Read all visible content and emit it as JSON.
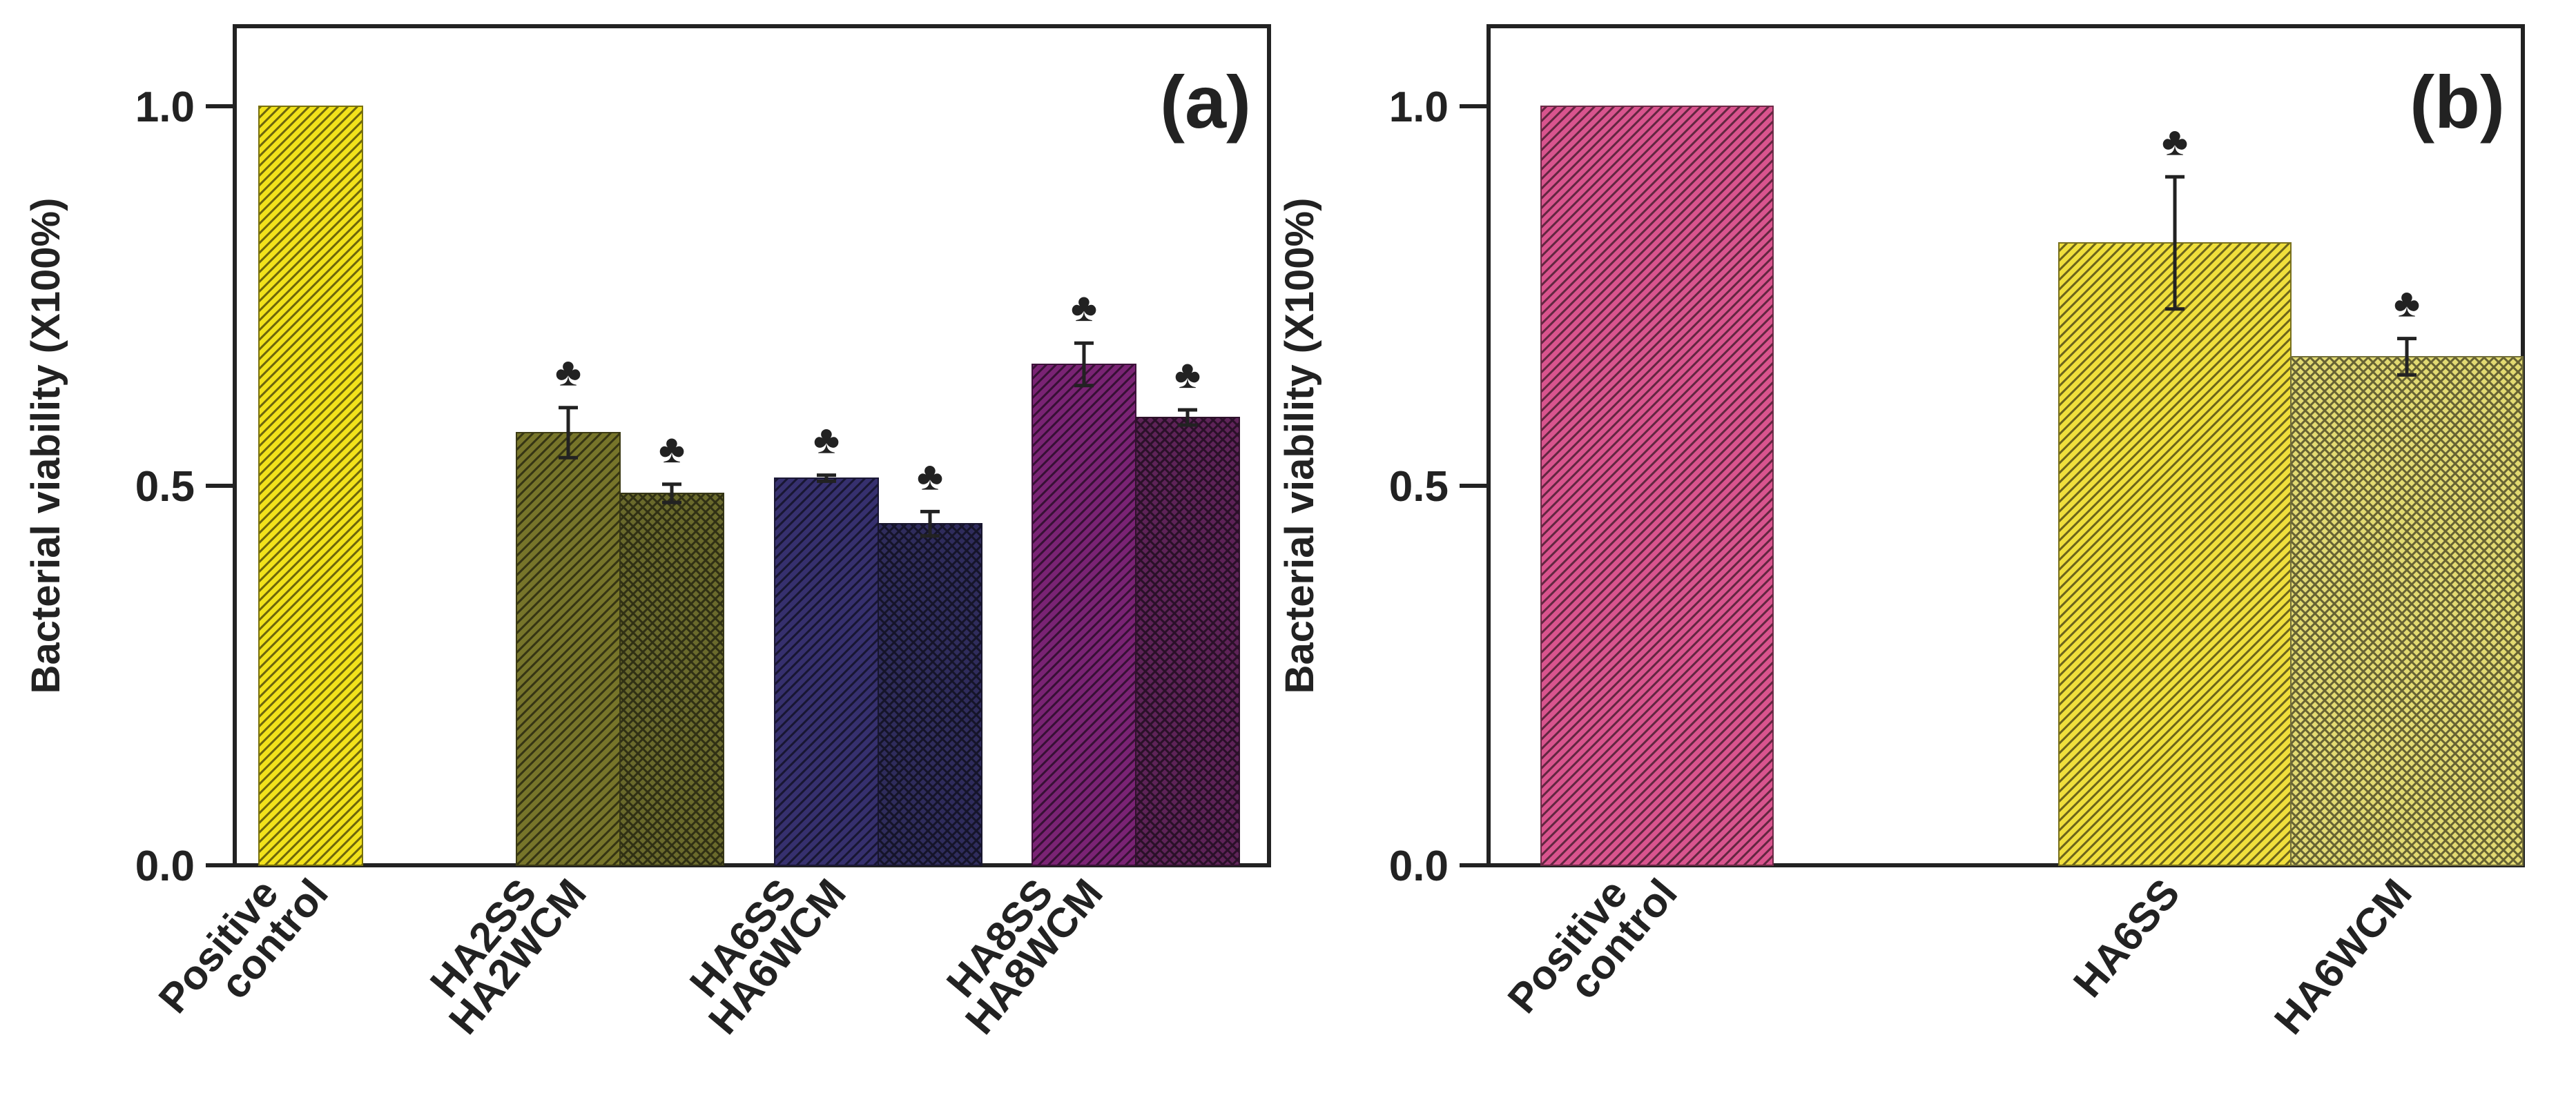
{
  "chart_data": [
    {
      "type": "bar",
      "panel_label": "(a)",
      "ylabel": "Bacterial viability (X100%)",
      "ylim": [
        0,
        1.1
      ],
      "yticks": [
        0.0,
        0.5,
        1.0
      ],
      "ytick_labels": [
        "0.0",
        "0.5",
        "1.0"
      ],
      "categories": [
        {
          "label": "Positive control",
          "label_lines": [
            "Positive",
            "control"
          ]
        },
        {
          "label": "HA2SS HA2WCM",
          "label_lines": [
            "HA2SS",
            "HA2WCM"
          ]
        },
        {
          "label": "HA6SS HA6WCM",
          "label_lines": [
            "HA6SS",
            "HA6WCM"
          ]
        },
        {
          "label": "HA8SS HA8WCM",
          "label_lines": [
            "HA8SS",
            "HA8WCM"
          ]
        }
      ],
      "bars": [
        {
          "name": "Positive control",
          "group": 0,
          "value": 1.0,
          "error": null,
          "significant": false,
          "color": "#f2e21b",
          "pattern": "diag"
        },
        {
          "name": "HA2SS",
          "group": 1,
          "value": 0.57,
          "error": 0.033,
          "significant": true,
          "color": "#77752a",
          "pattern": "diag"
        },
        {
          "name": "HA2WCM",
          "group": 1,
          "value": 0.49,
          "error": 0.012,
          "significant": true,
          "color": "#6a6a2c",
          "pattern": "cross"
        },
        {
          "name": "HA6SS",
          "group": 2,
          "value": 0.51,
          "error": 0.004,
          "significant": true,
          "color": "#36306e",
          "pattern": "diag"
        },
        {
          "name": "HA6WCM",
          "group": 2,
          "value": 0.45,
          "error": 0.016,
          "significant": true,
          "color": "#2f2c5c",
          "pattern": "cross"
        },
        {
          "name": "HA8SS",
          "group": 3,
          "value": 0.66,
          "error": 0.028,
          "significant": true,
          "color": "#7a2374",
          "pattern": "diag"
        },
        {
          "name": "HA8WCM",
          "group": 3,
          "value": 0.59,
          "error": 0.01,
          "significant": true,
          "color": "#5e2358",
          "pattern": "cross"
        }
      ],
      "significance_marker": "♣"
    },
    {
      "type": "bar",
      "panel_label": "(b)",
      "ylabel": "Bacterial viability (X100%)",
      "ylim": [
        0,
        1.1
      ],
      "yticks": [
        0.0,
        0.5,
        1.0
      ],
      "ytick_labels": [
        "0.0",
        "0.5",
        "1.0"
      ],
      "categories": [
        {
          "label": "Positive control",
          "label_lines": [
            "Positive",
            "control"
          ]
        },
        {
          "label": "HA6SS",
          "label_lines": [
            "HA6SS"
          ]
        },
        {
          "label": "HA6WCM",
          "label_lines": [
            "HA6WCM"
          ]
        }
      ],
      "bars": [
        {
          "name": "Positive control",
          "group": 0,
          "value": 1.0,
          "error": null,
          "significant": false,
          "color": "#d9548e",
          "pattern": "diag"
        },
        {
          "name": "HA6SS",
          "group": 1,
          "value": 0.82,
          "error": 0.087,
          "significant": true,
          "color": "#f0df3c",
          "pattern": "diag"
        },
        {
          "name": "HA6WCM",
          "group": 1,
          "value": 0.67,
          "error": 0.024,
          "significant": true,
          "color": "#e2da72",
          "pattern": "cross"
        }
      ],
      "significance_marker": "♣"
    }
  ]
}
